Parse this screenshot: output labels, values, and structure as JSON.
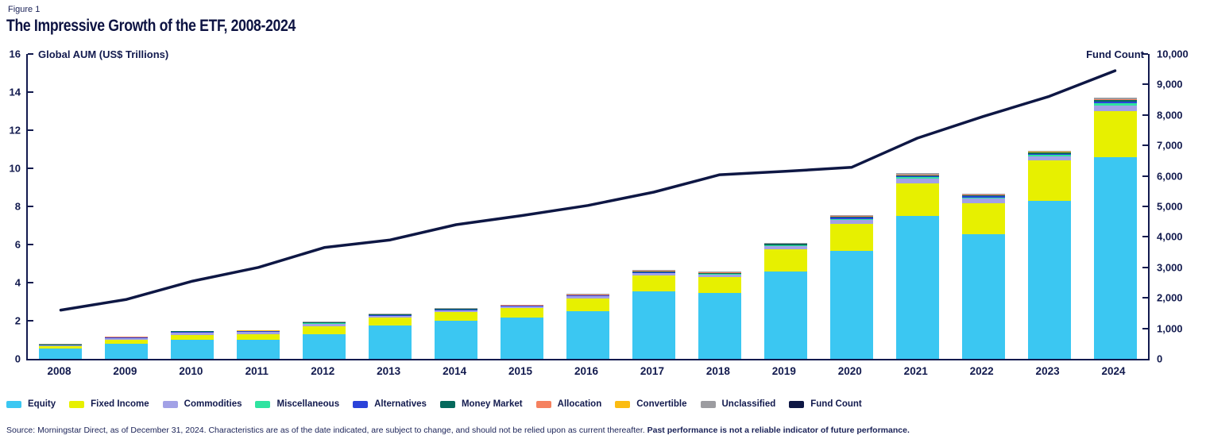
{
  "figure_label": "Figure 1",
  "title": "The Impressive Growth of the ETF, 2008-2024",
  "left_axis_title": "Global AUM (US$ Trillions)",
  "right_axis_title": "Fund Count",
  "source_note": {
    "regular": "Source: Morningstar Direct, as of December 31, 2024. Characteristics are as of the date indicated, are subject to change, and should not be relied upon as current thereafter. ",
    "bold": "Past performance is not a reliable indicator of future performance."
  },
  "colors": {
    "navy": "#121a4e",
    "title": "#0d1342",
    "line": "#0e1744",
    "background": "#ffffff"
  },
  "chart_data": {
    "type": "combo-stacked-bar-line",
    "title": "The Impressive Growth of the ETF, 2008-2024",
    "categories": [
      "2008",
      "2009",
      "2010",
      "2011",
      "2012",
      "2013",
      "2014",
      "2015",
      "2016",
      "2017",
      "2018",
      "2019",
      "2020",
      "2021",
      "2022",
      "2023",
      "2024"
    ],
    "left_axis": {
      "label": "Global AUM (US$ Trillions)",
      "min": 0,
      "max": 16,
      "tick_step": 2
    },
    "right_axis": {
      "label": "Fund Count",
      "min": 0,
      "max": 10000,
      "tick_step": 1000
    },
    "grid": false,
    "legend_position": "bottom-left",
    "series": [
      {
        "name": "Equity",
        "color": "#3bc7f2",
        "values": [
          0.55,
          0.8,
          1.0,
          0.98,
          1.3,
          1.75,
          2.0,
          2.15,
          2.5,
          3.55,
          3.45,
          4.6,
          5.65,
          7.5,
          6.55,
          8.3,
          10.6
        ]
      },
      {
        "name": "Fixed Income",
        "color": "#e7f000",
        "values": [
          0.1,
          0.2,
          0.25,
          0.3,
          0.4,
          0.4,
          0.45,
          0.5,
          0.68,
          0.82,
          0.85,
          1.15,
          1.45,
          1.7,
          1.6,
          2.1,
          2.4
        ]
      },
      {
        "name": "Commodities",
        "color": "#a2a1e6",
        "values": [
          0.06,
          0.09,
          0.13,
          0.13,
          0.15,
          0.1,
          0.09,
          0.09,
          0.1,
          0.12,
          0.12,
          0.15,
          0.2,
          0.25,
          0.25,
          0.22,
          0.3
        ]
      },
      {
        "name": "Miscellaneous",
        "color": "#2fe3a0",
        "values": [
          0.01,
          0.01,
          0.01,
          0.01,
          0.02,
          0.02,
          0.02,
          0.02,
          0.02,
          0.03,
          0.03,
          0.04,
          0.05,
          0.08,
          0.07,
          0.08,
          0.12
        ]
      },
      {
        "name": "Alternatives",
        "color": "#2b43d9",
        "values": [
          0.01,
          0.01,
          0.02,
          0.02,
          0.02,
          0.02,
          0.02,
          0.02,
          0.02,
          0.03,
          0.03,
          0.04,
          0.05,
          0.06,
          0.06,
          0.07,
          0.1
        ]
      },
      {
        "name": "Money Market",
        "color": "#04695c",
        "values": [
          0.02,
          0.03,
          0.03,
          0.03,
          0.03,
          0.03,
          0.03,
          0.03,
          0.03,
          0.04,
          0.04,
          0.05,
          0.06,
          0.05,
          0.05,
          0.05,
          0.06
        ]
      },
      {
        "name": "Allocation",
        "color": "#f5815f",
        "values": [
          0.01,
          0.01,
          0.01,
          0.01,
          0.01,
          0.01,
          0.01,
          0.01,
          0.01,
          0.02,
          0.02,
          0.02,
          0.03,
          0.03,
          0.03,
          0.03,
          0.04
        ]
      },
      {
        "name": "Convertible",
        "color": "#fbbc12",
        "values": [
          0.01,
          0.01,
          0.01,
          0.01,
          0.01,
          0.01,
          0.01,
          0.01,
          0.01,
          0.01,
          0.01,
          0.01,
          0.01,
          0.01,
          0.01,
          0.01,
          0.02
        ]
      },
      {
        "name": "Unclassified",
        "color": "#9c9ca0",
        "values": [
          0.02,
          0.02,
          0.02,
          0.02,
          0.02,
          0.02,
          0.02,
          0.02,
          0.03,
          0.03,
          0.03,
          0.04,
          0.05,
          0.07,
          0.06,
          0.06,
          0.08
        ]
      }
    ],
    "line_series": {
      "name": "Fund Count",
      "color": "#0e1744",
      "values": [
        1600,
        1950,
        2550,
        3000,
        3650,
        3900,
        4400,
        4700,
        5030,
        5470,
        6040,
        6150,
        6280,
        7240,
        7950,
        8610,
        9450
      ]
    },
    "legend": [
      {
        "label": "Equity",
        "color": "#3bc7f2"
      },
      {
        "label": "Fixed Income",
        "color": "#e7f000"
      },
      {
        "label": "Commodities",
        "color": "#a2a1e6"
      },
      {
        "label": "Miscellaneous",
        "color": "#2fe3a0"
      },
      {
        "label": "Alternatives",
        "color": "#2b43d9"
      },
      {
        "label": "Money Market",
        "color": "#04695c"
      },
      {
        "label": "Allocation",
        "color": "#f5815f"
      },
      {
        "label": "Convertible",
        "color": "#fbbc12"
      },
      {
        "label": "Unclassified",
        "color": "#9c9ca0"
      },
      {
        "label": "Fund Count",
        "color": "#0e1744"
      }
    ]
  }
}
